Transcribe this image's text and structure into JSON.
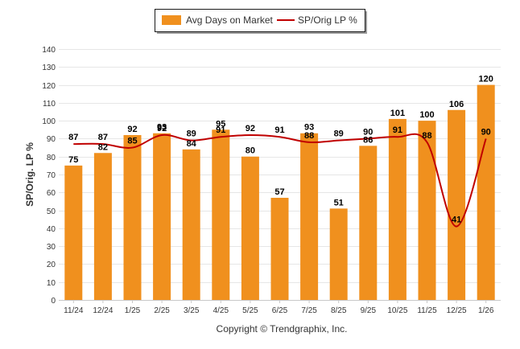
{
  "chart_data": {
    "type": "bar+line",
    "title": "",
    "ylabel": "SP/Orig. LP %",
    "xlabel": "",
    "ylim": [
      0,
      140
    ],
    "yticks": [
      0,
      10,
      20,
      30,
      40,
      50,
      60,
      70,
      80,
      90,
      100,
      110,
      120,
      130,
      140
    ],
    "categories": [
      "11/24",
      "12/24",
      "1/25",
      "2/25",
      "3/25",
      "4/25",
      "5/25",
      "6/25",
      "7/25",
      "8/25",
      "9/25",
      "10/25",
      "11/25",
      "12/25",
      "1/26"
    ],
    "series": [
      {
        "name": "Avg Days on Market",
        "type": "bar",
        "color": "#F0901E",
        "values": [
          75,
          82,
          92,
          93,
          84,
          95,
          80,
          57,
          93,
          51,
          86,
          101,
          100,
          106,
          120
        ]
      },
      {
        "name": "SP/Orig LP %",
        "type": "line",
        "color": "#C00000",
        "values": [
          87,
          87,
          85,
          92,
          89,
          91,
          92,
          91,
          88,
          89,
          90,
          91,
          88,
          41,
          90
        ]
      }
    ],
    "legend": [
      "Avg Days on Market",
      "SP/Orig LP %"
    ],
    "legend_position": "top-center",
    "copyright": "Copyright © Trendgraphix, Inc."
  }
}
